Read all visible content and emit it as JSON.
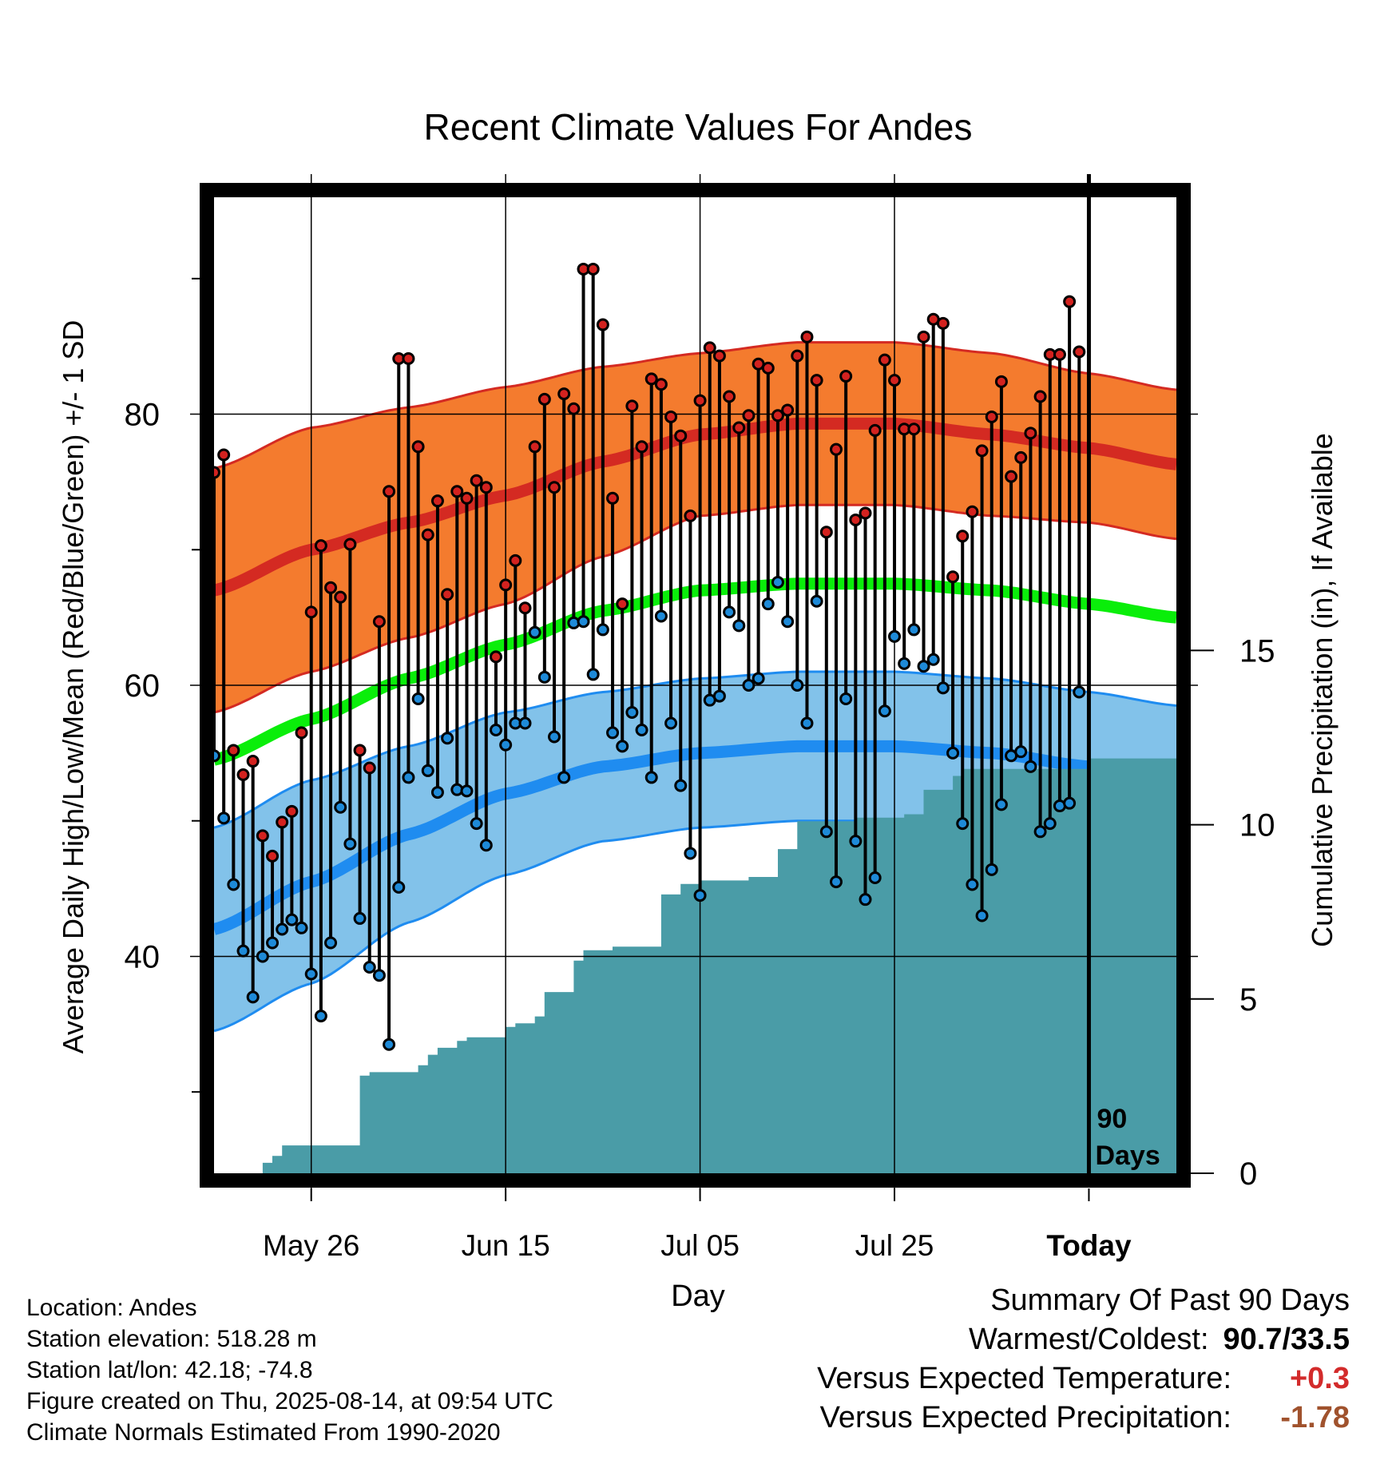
{
  "title": "Recent Climate Values For Andes",
  "chart_data": {
    "type": "line",
    "title": "Recent Climate Values For Andes",
    "xlabel": "Day",
    "ylabel_left": "Average Daily High/Low/Mean (Red/Blue/Green) +/- 1 SD",
    "ylabel_right": "Cumulative Precipitation (in), If Available",
    "x_day_range": [
      -90,
      9
    ],
    "ylim_temp": [
      24,
      96
    ],
    "ylim_precip": [
      0,
      28
    ],
    "x_ticks": [
      {
        "day": -80,
        "label": "May 26",
        "bold": false
      },
      {
        "day": -60,
        "label": "Jun 15",
        "bold": false
      },
      {
        "day": -40,
        "label": "Jul 05",
        "bold": false
      },
      {
        "day": -20,
        "label": "Jul 25",
        "bold": false
      },
      {
        "day": 0,
        "label": "Today",
        "bold": true
      }
    ],
    "y_ticks_temp": [
      {
        "value": 40,
        "label": "40"
      },
      {
        "value": 60,
        "label": "60"
      },
      {
        "value": 80,
        "label": "80"
      }
    ],
    "y_minor_ticks_temp": [
      30,
      50,
      70,
      90
    ],
    "y_ticks_precip": [
      {
        "value": 0,
        "label": "0"
      },
      {
        "value": 5,
        "label": "5"
      },
      {
        "value": 10,
        "label": "10"
      },
      {
        "value": 15,
        "label": "15"
      }
    ],
    "today_label": "90 Days",
    "grid": true,
    "colors": {
      "high_band": "#f47b2e",
      "high_mean": "#d42a22",
      "low_band": "#82c2ea",
      "low_mean": "#1f8cf0",
      "mean_line": "#0aee0a",
      "precip": "#4a9ca7",
      "high_point": "#d3221f",
      "low_point": "#1e8ad8"
    },
    "normals": {
      "days": [
        -90,
        -80,
        -70,
        -60,
        -50,
        -40,
        -30,
        -20,
        -10,
        0,
        9
      ],
      "high_mean": [
        67,
        70,
        72,
        74,
        76.5,
        78.5,
        79.3,
        79.3,
        78.5,
        77.5,
        76.3
      ],
      "high_sd": [
        9,
        9,
        8.5,
        8,
        7,
        6,
        6,
        6,
        6,
        5.5,
        5.5
      ],
      "low_mean": [
        42,
        45.5,
        49,
        52,
        54,
        55,
        55.5,
        55.5,
        55,
        54,
        53
      ],
      "low_sd": [
        7.5,
        7.5,
        6.5,
        6,
        5.5,
        5.5,
        5.5,
        5.5,
        5.5,
        5.5,
        5.5
      ],
      "avg_mean": [
        54.5,
        57.5,
        60.5,
        63,
        65.5,
        67,
        67.5,
        67.5,
        67,
        66,
        65
      ]
    },
    "daily": {
      "days": [
        -90,
        -89,
        -88,
        -87,
        -86,
        -85,
        -84,
        -83,
        -82,
        -81,
        -80,
        -79,
        -78,
        -77,
        -76,
        -75,
        -74,
        -73,
        -72,
        -71,
        -70,
        -69,
        -68,
        -67,
        -66,
        -65,
        -64,
        -63,
        -62,
        -61,
        -60,
        -59,
        -58,
        -57,
        -56,
        -55,
        -54,
        -53,
        -52,
        -51,
        -50,
        -49,
        -48,
        -47,
        -46,
        -45,
        -44,
        -43,
        -42,
        -41,
        -40,
        -39,
        -38,
        -37,
        -36,
        -35,
        -34,
        -33,
        -32,
        -31,
        -30,
        -29,
        -28,
        -27,
        -26,
        -25,
        -24,
        -23,
        -22,
        -21,
        -20,
        -19,
        -18,
        -17,
        -16,
        -15,
        -14,
        -13,
        -12,
        -11,
        -10,
        -9,
        -8,
        -7,
        -6,
        -5,
        -4,
        -3,
        -2,
        -1
      ],
      "high": [
        75.7,
        77.0,
        55.2,
        53.4,
        54.4,
        48.9,
        47.4,
        49.9,
        50.7,
        56.5,
        65.4,
        70.3,
        67.2,
        66.5,
        70.4,
        55.2,
        53.9,
        64.7,
        74.3,
        84.1,
        84.1,
        77.6,
        71.1,
        73.6,
        66.7,
        74.3,
        73.8,
        75.1,
        74.6,
        62.1,
        67.4,
        69.2,
        65.7,
        77.6,
        81.1,
        74.6,
        81.5,
        80.4,
        90.7,
        90.7,
        86.6,
        73.8,
        66.0,
        80.6,
        77.6,
        82.6,
        82.2,
        79.8,
        78.4,
        72.5,
        81.0,
        84.9,
        84.3,
        81.3,
        79.0,
        79.9,
        83.7,
        83.4,
        79.9,
        80.3,
        84.3,
        85.7,
        82.5,
        71.3,
        77.4,
        82.8,
        72.2,
        72.7,
        78.8,
        84.0,
        82.5,
        78.9,
        78.9,
        85.7,
        87.0,
        86.7,
        68.0,
        71.0,
        72.8,
        77.3,
        79.8,
        82.4,
        75.4,
        76.8,
        78.6,
        81.3,
        84.4,
        84.4,
        88.3,
        84.6
      ],
      "low": [
        54.8,
        50.2,
        45.3,
        40.4,
        37.0,
        40.0,
        41.0,
        42.0,
        42.7,
        42.1,
        38.7,
        35.6,
        41.0,
        51.0,
        48.3,
        42.8,
        39.2,
        38.6,
        33.5,
        45.1,
        53.2,
        59.0,
        53.7,
        52.1,
        56.1,
        52.3,
        52.2,
        49.8,
        48.2,
        56.7,
        55.6,
        57.2,
        57.2,
        63.9,
        60.6,
        56.2,
        53.2,
        64.6,
        64.7,
        60.8,
        64.1,
        56.5,
        55.5,
        58.0,
        56.7,
        53.2,
        65.1,
        57.2,
        52.6,
        47.6,
        44.5,
        58.9,
        59.2,
        65.4,
        64.4,
        60.0,
        60.5,
        66.0,
        67.6,
        64.7,
        60.0,
        57.2,
        66.2,
        49.2,
        45.5,
        59.0,
        48.5,
        44.2,
        45.8,
        58.1,
        63.6,
        61.6,
        64.1,
        61.4,
        61.9,
        59.8,
        55.0,
        49.8,
        45.3,
        43.0,
        46.4,
        51.2,
        54.8,
        55.1,
        54.0,
        49.2,
        49.8,
        51.1,
        51.3,
        59.5
      ]
    },
    "precip_cumulative": {
      "days": [
        -90,
        -89,
        -88,
        -87,
        -86,
        -85,
        -84,
        -83,
        -82,
        -81,
        -80,
        -79,
        -78,
        -77,
        -76,
        -75,
        -74,
        -73,
        -72,
        -71,
        -70,
        -69,
        -68,
        -67,
        -66,
        -65,
        -64,
        -63,
        -62,
        -61,
        -60,
        -59,
        -58,
        -57,
        -56,
        -55,
        -54,
        -53,
        -52,
        -51,
        -50,
        -49,
        -48,
        -47,
        -46,
        -45,
        -44,
        -43,
        -42,
        -41,
        -40,
        -39,
        -38,
        -37,
        -36,
        -35,
        -34,
        -33,
        -32,
        -31,
        -30,
        -29,
        -28,
        -27,
        -26,
        -25,
        -24,
        -23,
        -22,
        -21,
        -20,
        -19,
        -18,
        -17,
        -16,
        -15,
        -14,
        -13,
        -12,
        -11,
        -10,
        -9,
        -8,
        -7,
        -6,
        -5,
        -4,
        -3,
        -2,
        -1,
        0,
        9
      ],
      "values": [
        0,
        0,
        0,
        0,
        0,
        0.3,
        0.5,
        0.8,
        0.8,
        0.8,
        0.8,
        0.8,
        0.8,
        0.8,
        0.8,
        2.8,
        2.9,
        2.9,
        2.9,
        2.9,
        2.9,
        3.1,
        3.4,
        3.6,
        3.6,
        3.8,
        3.9,
        3.9,
        3.9,
        3.9,
        4.2,
        4.3,
        4.3,
        4.5,
        5.2,
        5.2,
        5.2,
        6.1,
        6.4,
        6.4,
        6.4,
        6.5,
        6.5,
        6.5,
        6.5,
        6.5,
        8.0,
        8.0,
        8.3,
        8.3,
        8.4,
        8.4,
        8.4,
        8.4,
        8.4,
        8.5,
        8.5,
        8.5,
        9.3,
        9.3,
        10.1,
        10.1,
        10.1,
        10.1,
        10.1,
        10.1,
        10.2,
        10.2,
        10.2,
        10.2,
        10.2,
        10.3,
        10.3,
        11.0,
        11.0,
        11.0,
        11.4,
        11.6,
        11.6,
        11.6,
        11.6,
        11.6,
        11.6,
        11.6,
        11.6,
        11.6,
        11.6,
        11.6,
        11.6,
        11.6,
        11.9,
        11.9
      ]
    }
  },
  "footer": {
    "location": "Location: Andes",
    "elevation": "Station elevation: 518.28 m",
    "latlon": "Station lat/lon: 42.18; -74.8",
    "created": "Figure created on Thu, 2025-08-14, at 09:54 UTC",
    "normals": "Climate Normals Estimated From 1990-2020"
  },
  "summary": {
    "heading": "Summary Of Past 90 Days",
    "warmest_coldest_label": "Warmest/Coldest:",
    "warmest_coldest_value": "90.7/33.5",
    "temp_label": "Versus Expected Temperature:",
    "temp_value": "+0.3",
    "temp_color": "#d32b2b",
    "precip_label": "Versus Expected Precipitation:",
    "precip_value": "-1.78",
    "precip_color": "#a0522d"
  }
}
